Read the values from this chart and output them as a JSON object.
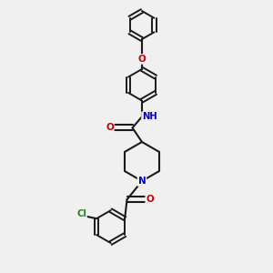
{
  "background_color": "#f0f0f0",
  "bond_color": "#1a1a1a",
  "atom_colors": {
    "O": "#cc0000",
    "N": "#0000cc",
    "Cl": "#228822",
    "C": "#1a1a1a",
    "H": "#555555"
  },
  "figsize": [
    3.0,
    3.0
  ],
  "dpi": 100
}
